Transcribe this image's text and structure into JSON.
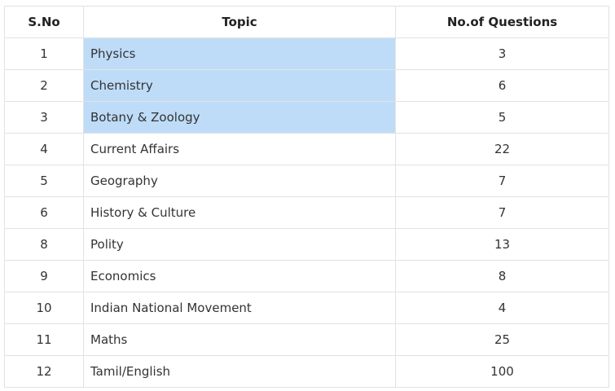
{
  "table": {
    "headers": [
      "S.No",
      "Topic",
      "No.of Questions"
    ],
    "highlight_color": "#bedcf8",
    "rows": [
      {
        "sno": "1",
        "topic": "Physics",
        "questions": "3",
        "highlighted": true
      },
      {
        "sno": "2",
        "topic": "Chemistry",
        "questions": "6",
        "highlighted": true
      },
      {
        "sno": "3",
        "topic": "Botany & Zoology",
        "questions": "5",
        "highlighted": true
      },
      {
        "sno": "4",
        "topic": "Current Affairs",
        "questions": "22",
        "highlighted": false
      },
      {
        "sno": "5",
        "topic": "Geography",
        "questions": "7",
        "highlighted": false
      },
      {
        "sno": "6",
        "topic": "History & Culture",
        "questions": "7",
        "highlighted": false
      },
      {
        "sno": "8",
        "topic": "Polity",
        "questions": "13",
        "highlighted": false
      },
      {
        "sno": "9",
        "topic": "Economics",
        "questions": "8",
        "highlighted": false
      },
      {
        "sno": "10",
        "topic": "Indian National Movement",
        "questions": "4",
        "highlighted": false
      },
      {
        "sno": "11",
        "topic": "Maths",
        "questions": "25",
        "highlighted": false
      },
      {
        "sno": "12",
        "topic": "Tamil/English",
        "questions": "100",
        "highlighted": false
      }
    ]
  }
}
